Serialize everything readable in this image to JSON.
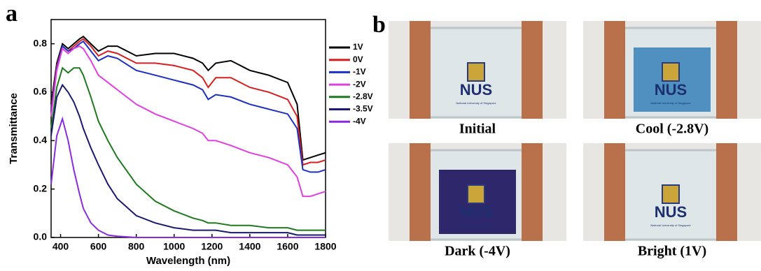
{
  "chart_data": {
    "type": "line",
    "panel_label": "a",
    "xlabel": "Wavelength (nm)",
    "ylabel": "Transmittance",
    "x": [
      350,
      380,
      410,
      440,
      470,
      500,
      520,
      560,
      600,
      650,
      700,
      800,
      900,
      1000,
      1100,
      1150,
      1180,
      1220,
      1300,
      1400,
      1500,
      1600,
      1650,
      1680,
      1720,
      1760,
      1800
    ],
    "series": [
      {
        "name": "1V",
        "color": "#000000",
        "values": [
          0.55,
          0.72,
          0.8,
          0.78,
          0.8,
          0.82,
          0.83,
          0.8,
          0.77,
          0.79,
          0.79,
          0.75,
          0.76,
          0.76,
          0.74,
          0.72,
          0.69,
          0.72,
          0.73,
          0.69,
          0.67,
          0.64,
          0.55,
          0.32,
          0.33,
          0.34,
          0.35
        ]
      },
      {
        "name": "0V",
        "color": "#d62020",
        "values": [
          0.53,
          0.71,
          0.79,
          0.77,
          0.79,
          0.81,
          0.82,
          0.79,
          0.75,
          0.77,
          0.76,
          0.72,
          0.72,
          0.71,
          0.69,
          0.66,
          0.62,
          0.66,
          0.66,
          0.62,
          0.6,
          0.57,
          0.5,
          0.3,
          0.31,
          0.31,
          0.32
        ]
      },
      {
        "name": "-1V",
        "color": "#1c2fc4",
        "values": [
          0.52,
          0.7,
          0.79,
          0.77,
          0.78,
          0.8,
          0.81,
          0.77,
          0.73,
          0.75,
          0.74,
          0.69,
          0.67,
          0.65,
          0.63,
          0.61,
          0.57,
          0.59,
          0.58,
          0.55,
          0.53,
          0.51,
          0.45,
          0.28,
          0.27,
          0.27,
          0.28
        ]
      },
      {
        "name": "-2V",
        "color": "#e040e0",
        "values": [
          0.5,
          0.69,
          0.78,
          0.76,
          0.78,
          0.79,
          0.78,
          0.73,
          0.67,
          0.64,
          0.61,
          0.55,
          0.51,
          0.48,
          0.45,
          0.43,
          0.4,
          0.4,
          0.38,
          0.35,
          0.33,
          0.3,
          0.25,
          0.17,
          0.17,
          0.18,
          0.19
        ]
      },
      {
        "name": "-2.8V",
        "color": "#1f7a1f",
        "values": [
          0.45,
          0.62,
          0.7,
          0.68,
          0.7,
          0.7,
          0.67,
          0.58,
          0.48,
          0.4,
          0.33,
          0.22,
          0.15,
          0.11,
          0.08,
          0.07,
          0.06,
          0.06,
          0.05,
          0.05,
          0.04,
          0.04,
          0.03,
          0.03,
          0.03,
          0.03,
          0.03
        ]
      },
      {
        "name": "-3.5V",
        "color": "#1a1a70",
        "values": [
          0.42,
          0.58,
          0.63,
          0.6,
          0.56,
          0.5,
          0.45,
          0.37,
          0.3,
          0.22,
          0.16,
          0.09,
          0.06,
          0.04,
          0.03,
          0.03,
          0.03,
          0.03,
          0.02,
          0.02,
          0.02,
          0.02,
          0.01,
          0.01,
          0.01,
          0.01,
          0.01
        ]
      },
      {
        "name": "-4V",
        "color": "#8a2be2",
        "values": [
          0.22,
          0.42,
          0.49,
          0.4,
          0.28,
          0.18,
          0.12,
          0.06,
          0.03,
          0.01,
          0.005,
          0,
          0,
          0,
          0,
          0,
          0,
          0,
          0,
          0,
          0,
          0,
          0,
          0,
          0,
          0,
          0
        ]
      }
    ],
    "xlim": [
      350,
      1800
    ],
    "xticks": [
      400,
      600,
      800,
      1000,
      1200,
      1400,
      1600,
      1800
    ],
    "ylim": [
      0,
      0.9
    ],
    "yticks": [
      {
        "value": 0,
        "label": "0.0"
      },
      0.2,
      0.4,
      0.6,
      0.8
    ],
    "legend": "right-outside",
    "grid": false
  },
  "photos": {
    "panel_label": "b",
    "logo_text": "NUS",
    "logo_subtext": "National University of Singapore",
    "items": [
      {
        "caption": "Initial",
        "tint": "none"
      },
      {
        "caption": "Cool (-2.8V)",
        "tint": "#3f86bd"
      },
      {
        "caption": "Dark (-4V)",
        "tint": "#1c125e"
      },
      {
        "caption": "Bright (1V)",
        "tint": "none"
      }
    ]
  }
}
